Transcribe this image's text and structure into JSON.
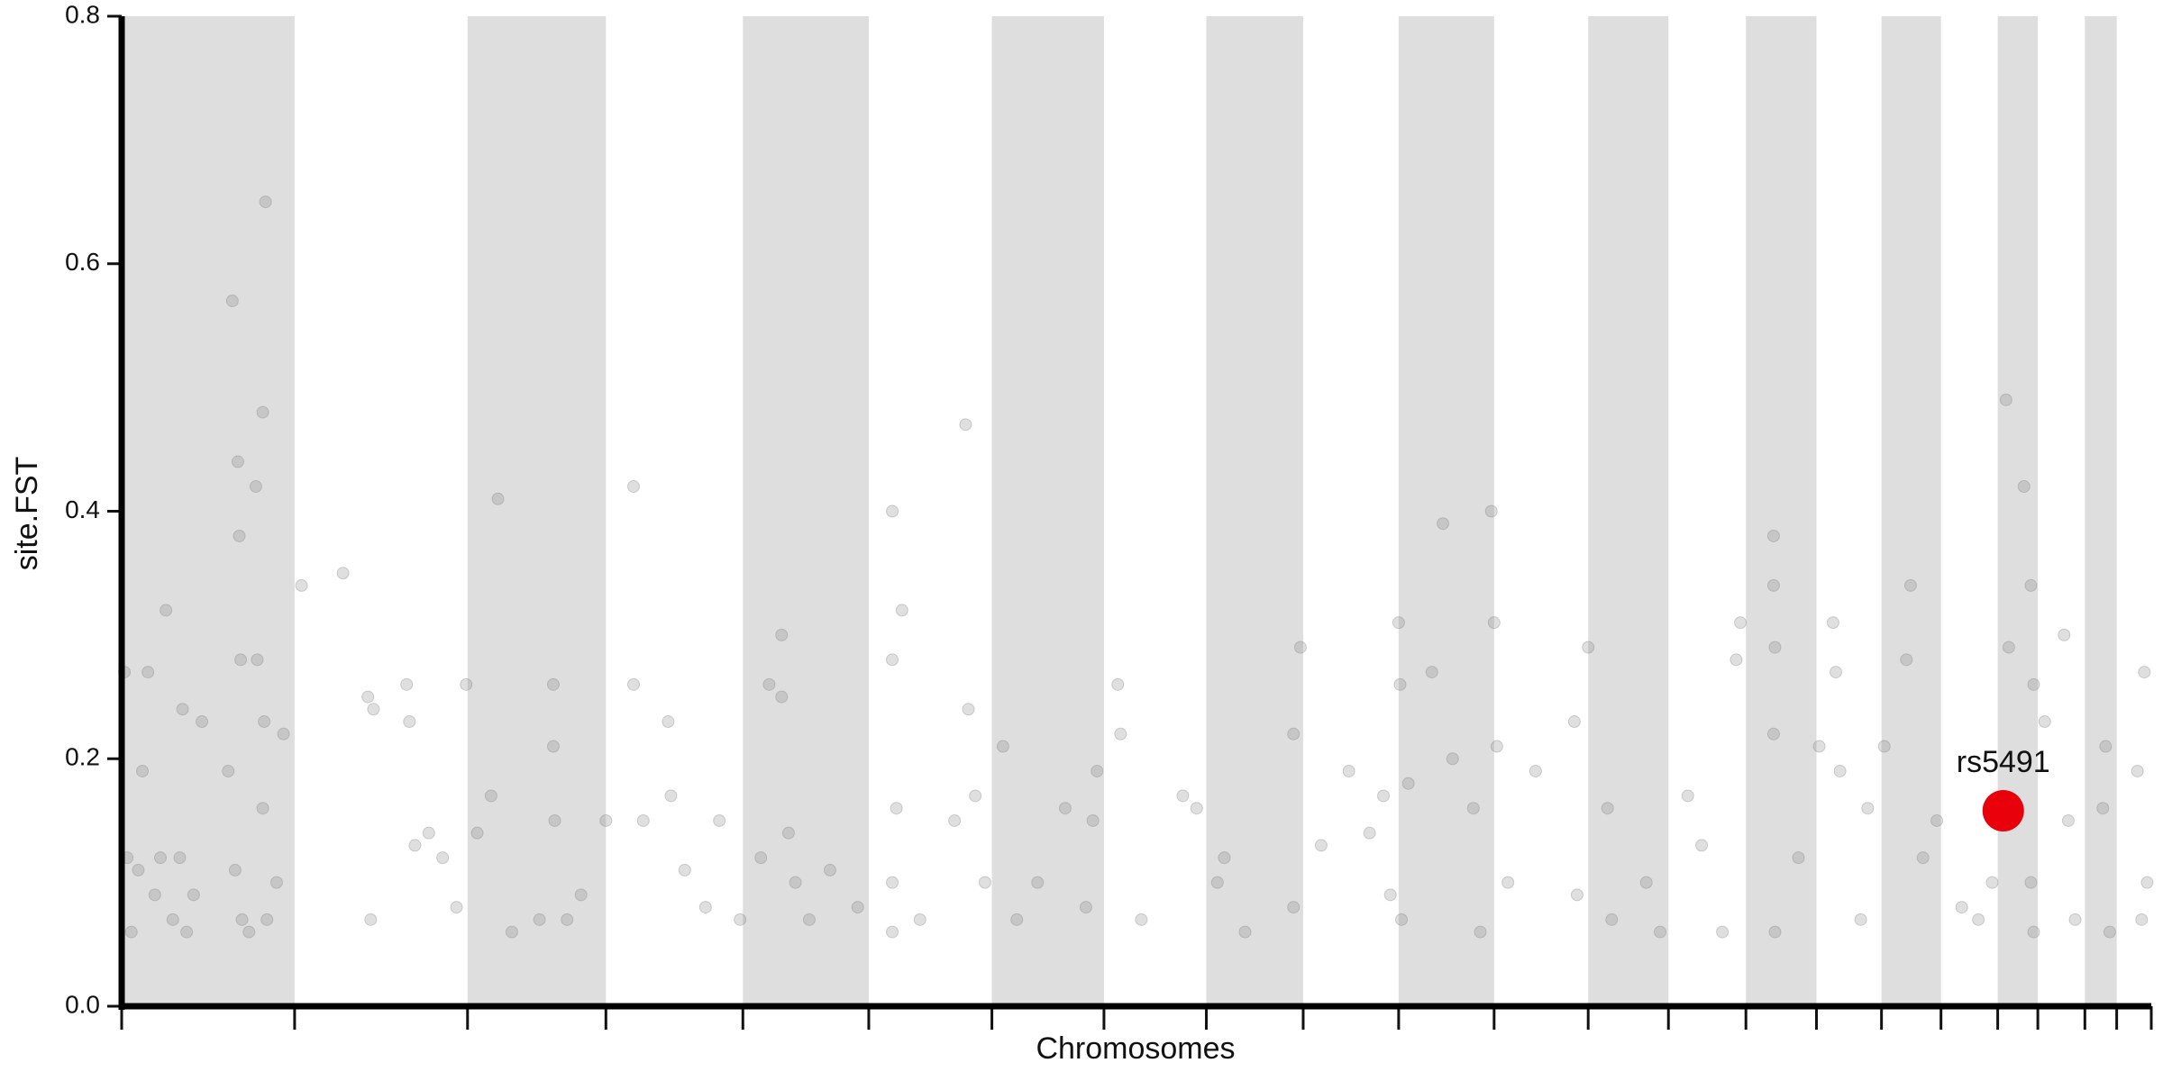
{
  "chart_data": {
    "type": "scatter",
    "xlabel": "Chromosomes",
    "ylabel": "site.FST",
    "xlim": [
      0,
      1467
    ],
    "ylim": [
      0,
      0.8
    ],
    "yticks": [
      {
        "value": 0,
        "label": "0.0"
      },
      {
        "value": 0.2,
        "label": "0.2"
      },
      {
        "value": 0.4,
        "label": "0.4"
      },
      {
        "value": 0.6,
        "label": "0.6"
      },
      {
        "value": 0.8,
        "label": "0.8"
      }
    ],
    "chromosome_bounds": [
      0,
      125,
      250,
      350,
      449,
      540,
      629,
      710,
      784,
      854,
      923,
      992,
      1060,
      1118,
      1174,
      1225,
      1272,
      1315,
      1356,
      1385,
      1419,
      1442,
      1467
    ],
    "band_color": "#dedede",
    "series": [
      {
        "color": "#808080",
        "x": [
          2,
          4,
          7,
          12,
          15,
          19,
          24,
          28,
          32,
          37,
          42,
          44,
          47,
          52,
          58,
          77,
          80,
          82,
          84,
          85,
          86,
          87,
          92,
          97,
          98,
          102,
          104,
          103,
          102,
          105,
          112,
          117,
          130,
          160,
          178,
          182,
          180,
          206,
          208,
          212,
          222,
          232,
          242,
          249,
          257,
          267,
          272,
          282,
          302,
          312,
          312,
          313,
          322,
          332,
          350,
          370,
          370,
          377,
          395,
          397,
          407,
          422,
          432,
          447,
          462,
          468,
          477,
          477,
          482,
          487,
          497,
          512,
          532,
          557,
          557,
          560,
          557,
          557,
          564,
          577,
          602,
          610,
          612,
          617,
          624,
          637,
          647,
          662,
          682,
          697,
          702,
          705,
          720,
          722,
          737,
          767,
          777,
          792,
          797,
          812,
          847,
          852,
          847,
          867,
          887,
          902,
          912,
          917,
          923,
          924,
          925,
          930,
          947,
          955,
          962,
          977,
          982,
          990,
          992,
          994,
          1002,
          1022,
          1050,
          1052,
          1060,
          1074,
          1077,
          1102,
          1112,
          1132,
          1142,
          1157,
          1167,
          1170,
          1194,
          1194,
          1195,
          1194,
          1195,
          1212,
          1227,
          1237,
          1239,
          1242,
          1262,
          1257,
          1274,
          1290,
          1293,
          1302,
          1312,
          1330,
          1342,
          1352,
          1362,
          1364,
          1375,
          1380,
          1382,
          1382,
          1380,
          1390,
          1404,
          1407,
          1412,
          1434,
          1432,
          1437,
          1457,
          1462,
          1460,
          1464
        ],
        "values": [
          0.27,
          0.12,
          0.06,
          0.11,
          0.19,
          0.27,
          0.09,
          0.12,
          0.32,
          0.07,
          0.12,
          0.24,
          0.06,
          0.09,
          0.23,
          0.19,
          0.57,
          0.11,
          0.44,
          0.38,
          0.28,
          0.07,
          0.06,
          0.42,
          0.28,
          0.48,
          0.65,
          0.23,
          0.16,
          0.07,
          0.1,
          0.22,
          0.34,
          0.35,
          0.25,
          0.24,
          0.07,
          0.26,
          0.23,
          0.13,
          0.14,
          0.12,
          0.08,
          0.26,
          0.14,
          0.17,
          0.41,
          0.06,
          0.07,
          0.26,
          0.21,
          0.15,
          0.07,
          0.09,
          0.15,
          0.42,
          0.26,
          0.15,
          0.23,
          0.17,
          0.11,
          0.08,
          0.15,
          0.07,
          0.12,
          0.26,
          0.3,
          0.25,
          0.14,
          0.1,
          0.07,
          0.11,
          0.08,
          0.4,
          0.28,
          0.16,
          0.1,
          0.06,
          0.32,
          0.07,
          0.15,
          0.47,
          0.24,
          0.17,
          0.1,
          0.21,
          0.07,
          0.1,
          0.16,
          0.08,
          0.15,
          0.19,
          0.26,
          0.22,
          0.07,
          0.17,
          0.16,
          0.1,
          0.12,
          0.06,
          0.22,
          0.29,
          0.08,
          0.13,
          0.19,
          0.14,
          0.17,
          0.09,
          0.31,
          0.26,
          0.07,
          0.18,
          0.27,
          0.39,
          0.2,
          0.16,
          0.06,
          0.4,
          0.31,
          0.21,
          0.1,
          0.19,
          0.23,
          0.09,
          0.29,
          0.16,
          0.07,
          0.1,
          0.06,
          0.17,
          0.13,
          0.06,
          0.28,
          0.31,
          0.38,
          0.34,
          0.29,
          0.22,
          0.06,
          0.12,
          0.21,
          0.31,
          0.27,
          0.19,
          0.16,
          0.07,
          0.21,
          0.28,
          0.34,
          0.12,
          0.15,
          0.08,
          0.07,
          0.1,
          0.49,
          0.29,
          0.42,
          0.34,
          0.26,
          0.06,
          0.1,
          0.23,
          0.3,
          0.15,
          0.07,
          0.21,
          0.16,
          0.06,
          0.19,
          0.27,
          0.07,
          0.1
        ]
      },
      {
        "name": "rs5491",
        "color": "#e8000b",
        "x": [
          1360
        ],
        "values": [
          0.158
        ]
      }
    ]
  }
}
